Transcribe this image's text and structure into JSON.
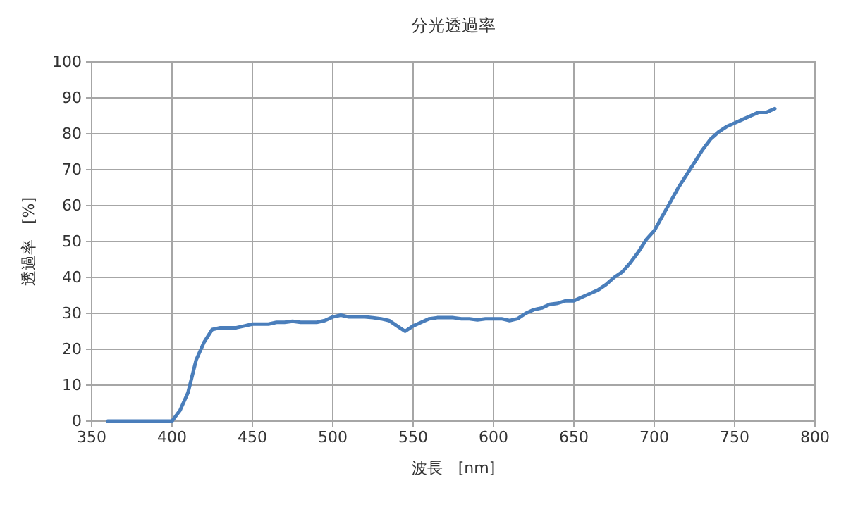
{
  "chart_data": {
    "type": "line",
    "title": "分光透過率",
    "xlabel": "波長　[nm]",
    "ylabel": "透過率　[%]",
    "x": [
      360,
      365,
      370,
      375,
      380,
      385,
      390,
      395,
      400,
      405,
      410,
      415,
      420,
      425,
      430,
      435,
      440,
      445,
      450,
      455,
      460,
      465,
      470,
      475,
      480,
      485,
      490,
      495,
      500,
      505,
      510,
      515,
      520,
      525,
      530,
      535,
      540,
      545,
      550,
      555,
      560,
      565,
      570,
      575,
      580,
      585,
      590,
      595,
      600,
      605,
      610,
      615,
      620,
      625,
      630,
      635,
      640,
      645,
      650,
      655,
      660,
      665,
      670,
      675,
      680,
      685,
      690,
      695,
      700,
      705,
      710,
      715,
      720,
      725,
      730,
      735,
      740,
      745,
      750,
      755,
      760,
      765,
      770,
      775
    ],
    "series": [
      {
        "color": "#4a7ebb",
        "values": [
          0,
          0,
          0,
          0,
          0,
          0,
          0,
          0,
          0,
          3,
          8,
          17,
          22,
          25.5,
          26,
          26,
          26,
          26.5,
          27,
          27,
          27,
          27.5,
          27.5,
          27.8,
          27.5,
          27.5,
          27.5,
          28,
          29,
          29.5,
          29,
          29,
          29,
          28.8,
          28.5,
          28,
          26.5,
          25,
          26.5,
          27.5,
          28.5,
          28.8,
          28.8,
          28.8,
          28.5,
          28.5,
          28.2,
          28.5,
          28.5,
          28.5,
          28,
          28.5,
          30,
          31,
          31.5,
          32.5,
          32.8,
          33.5,
          33.5,
          34.5,
          35.5,
          36.5,
          38,
          40,
          41.5,
          44,
          47,
          50.5,
          53,
          57,
          61,
          65,
          68.5,
          72,
          75.5,
          78.5,
          80.5,
          82,
          83,
          84,
          85,
          86,
          86,
          87
        ]
      }
    ],
    "xlim": [
      350,
      800
    ],
    "xticks": [
      350,
      400,
      450,
      500,
      550,
      600,
      650,
      700,
      750,
      800
    ],
    "ylim": [
      0,
      100
    ],
    "yticks": [
      0,
      10,
      20,
      30,
      40,
      50,
      60,
      70,
      80,
      90,
      100
    ],
    "grid": true,
    "marker": "none",
    "line_style": "solid"
  }
}
